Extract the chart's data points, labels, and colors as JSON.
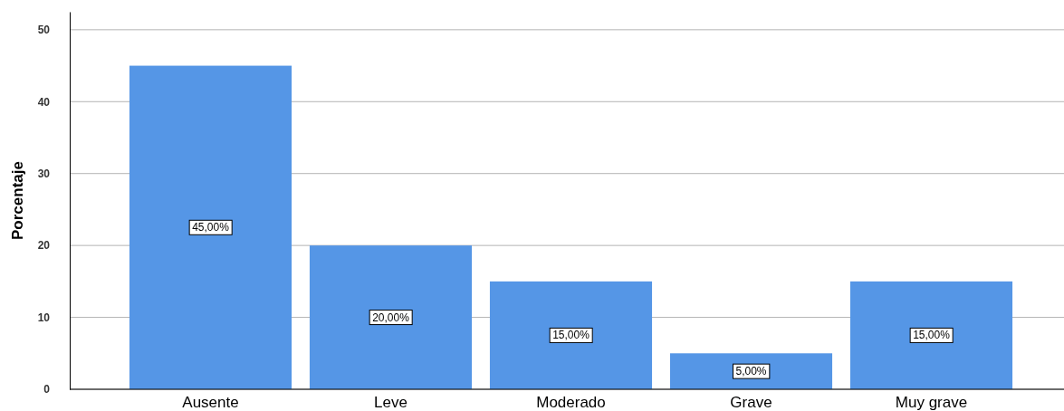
{
  "chart_data": {
    "type": "bar",
    "ylabel": "Porcentaje",
    "categories": [
      "Ausente",
      "Leve",
      "Moderado",
      "Grave",
      "Muy grave"
    ],
    "values": [
      45,
      20,
      15,
      5,
      15
    ],
    "color": "#5596e6",
    "value_labels": [
      "45,00%",
      "20,00%",
      "15,00%",
      "5,00%",
      "15,00%"
    ],
    "ylim": [
      0,
      52.5
    ],
    "yticks": [
      0,
      10,
      20,
      30,
      40,
      50
    ],
    "grid": "y"
  }
}
